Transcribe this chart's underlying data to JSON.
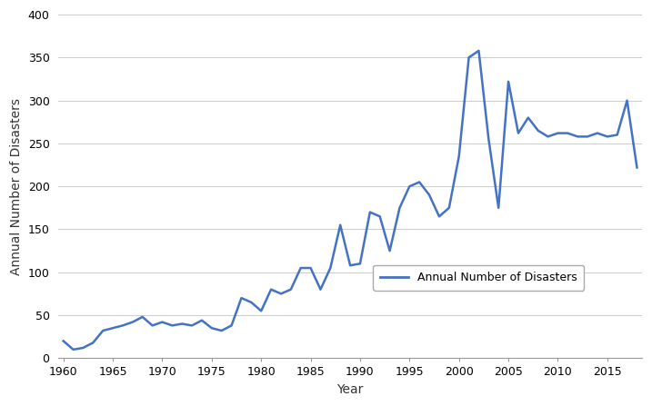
{
  "years": [
    1960,
    1961,
    1962,
    1963,
    1964,
    1965,
    1966,
    1967,
    1968,
    1969,
    1970,
    1971,
    1972,
    1973,
    1974,
    1975,
    1976,
    1977,
    1978,
    1979,
    1980,
    1981,
    1982,
    1983,
    1984,
    1985,
    1986,
    1987,
    1988,
    1989,
    1990,
    1991,
    1992,
    1993,
    1994,
    1995,
    1996,
    1997,
    1998,
    1999,
    2000,
    2001,
    2002,
    2003,
    2004,
    2005,
    2006,
    2007,
    2008,
    2009,
    2010,
    2011,
    2012,
    2013,
    2014,
    2015,
    2016,
    2017,
    2018
  ],
  "values": [
    20,
    10,
    12,
    18,
    32,
    35,
    38,
    42,
    48,
    38,
    42,
    38,
    40,
    38,
    44,
    35,
    32,
    38,
    70,
    65,
    55,
    80,
    75,
    80,
    105,
    105,
    80,
    105,
    155,
    108,
    110,
    170,
    165,
    125,
    175,
    200,
    205,
    190,
    165,
    175,
    235,
    350,
    358,
    255,
    175,
    322,
    262,
    280,
    265,
    258,
    262,
    262,
    258,
    258,
    262,
    258,
    260,
    300,
    222
  ],
  "line_color": "#4472C4",
  "line_width": 1.8,
  "ylabel": "Annual Number of Disasters",
  "xlabel": "Year",
  "legend_label": "Annual Number of Disasters",
  "ylim": [
    0,
    400
  ],
  "xlim_min": 1959.5,
  "xlim_max": 2018.5,
  "yticks": [
    0,
    50,
    100,
    150,
    200,
    250,
    300,
    350,
    400
  ],
  "xticks": [
    1960,
    1965,
    1970,
    1975,
    1980,
    1985,
    1990,
    1995,
    2000,
    2005,
    2010,
    2015
  ],
  "grid_color": "#cccccc",
  "background_color": "#ffffff",
  "tick_label_fontsize": 9,
  "axis_label_fontsize": 10,
  "legend_fontsize": 9
}
